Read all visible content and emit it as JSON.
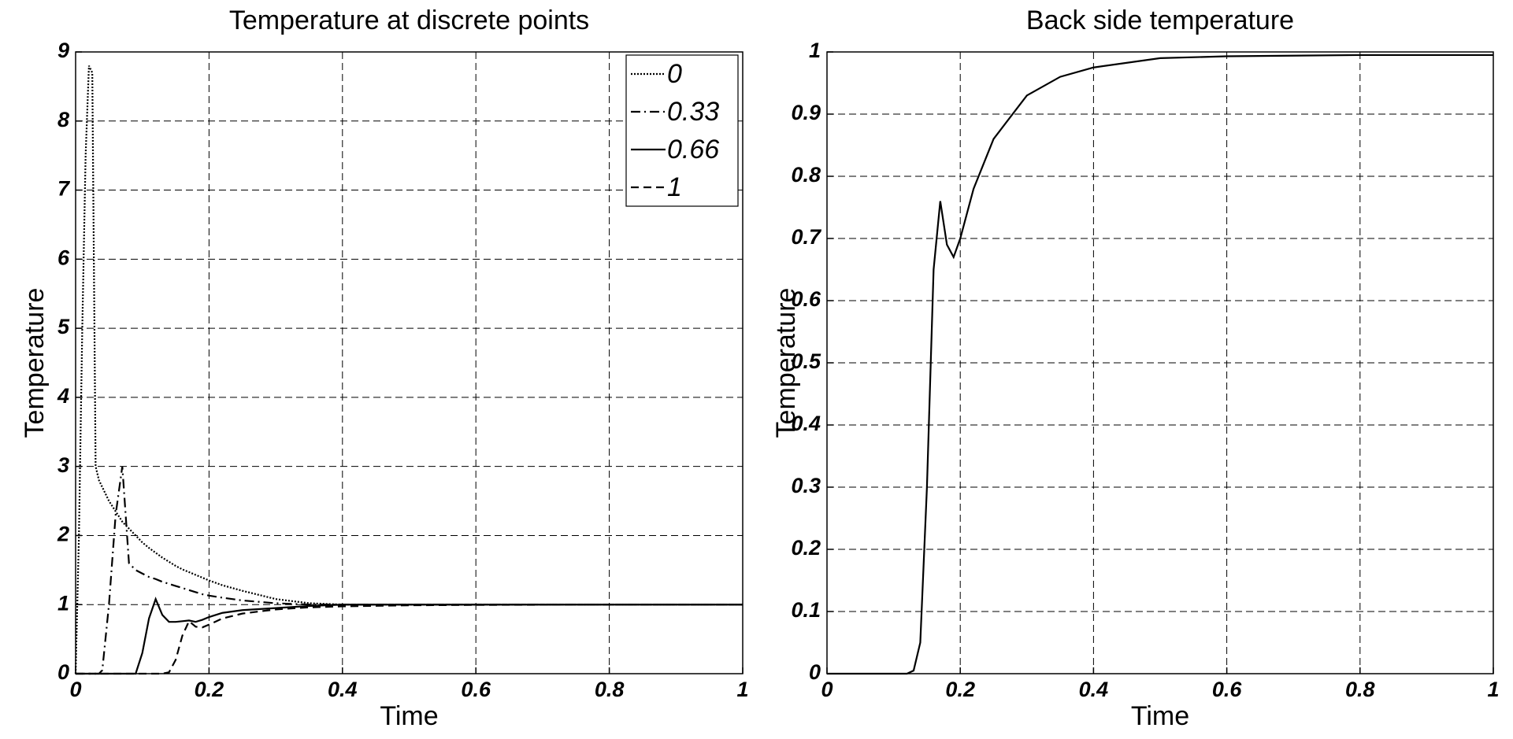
{
  "chart_data": [
    {
      "type": "line",
      "title": "Temperature at discrete points",
      "x_label": "Time",
      "y_label": "Temperature",
      "x": [
        0,
        0.005,
        0.01,
        0.015,
        0.02,
        0.025,
        0.03,
        0.035,
        0.04,
        0.05,
        0.06,
        0.07,
        0.08,
        0.09,
        0.1,
        0.11,
        0.12,
        0.13,
        0.14,
        0.15,
        0.16,
        0.17,
        0.18,
        0.19,
        0.2,
        0.22,
        0.25,
        0.3,
        0.35,
        0.4,
        0.5,
        0.6,
        0.8,
        1
      ],
      "series": [
        {
          "name": "0",
          "color": "#000000",
          "line_style": "dotted",
          "values": [
            0,
            2,
            5,
            7.5,
            8.8,
            8.7,
            3.0,
            2.8,
            2.7,
            2.5,
            2.35,
            2.2,
            2.1,
            2.0,
            1.9,
            1.82,
            1.75,
            1.68,
            1.62,
            1.56,
            1.51,
            1.47,
            1.43,
            1.39,
            1.35,
            1.28,
            1.2,
            1.08,
            1.02,
            1.0,
            1,
            1,
            1,
            1
          ]
        },
        {
          "name": "0.33",
          "color": "#000000",
          "line_style": "dashdot",
          "values": [
            0,
            0,
            0,
            0,
            0,
            0,
            0,
            0,
            0.05,
            1.0,
            2.3,
            3.0,
            1.6,
            1.5,
            1.45,
            1.4,
            1.37,
            1.33,
            1.3,
            1.27,
            1.24,
            1.21,
            1.18,
            1.15,
            1.13,
            1.1,
            1.06,
            1.02,
            1.0,
            1.0,
            1,
            1,
            1,
            1
          ]
        },
        {
          "name": "0.66",
          "color": "#000000",
          "line_style": "solid",
          "values": [
            0,
            0,
            0,
            0,
            0,
            0,
            0,
            0,
            0,
            0,
            0,
            0,
            0,
            0,
            0.3,
            0.8,
            1.08,
            0.85,
            0.75,
            0.75,
            0.76,
            0.77,
            0.75,
            0.78,
            0.82,
            0.88,
            0.92,
            0.95,
            0.98,
            1.0,
            1,
            1,
            1,
            1
          ]
        },
        {
          "name": "1",
          "color": "#000000",
          "line_style": "dashed",
          "values": [
            0,
            0,
            0,
            0,
            0,
            0,
            0,
            0,
            0,
            0,
            0,
            0,
            0,
            0,
            0,
            0,
            0,
            0,
            0.02,
            0.2,
            0.55,
            0.76,
            0.68,
            0.67,
            0.71,
            0.8,
            0.87,
            0.93,
            0.96,
            0.975,
            0.99,
            0.995,
            1,
            1
          ]
        }
      ],
      "xlim": [
        0,
        1
      ],
      "xticks": [
        0,
        0.2,
        0.4,
        0.6,
        0.8,
        1
      ],
      "ylim": [
        0,
        9
      ],
      "yticks": [
        0,
        1,
        2,
        3,
        4,
        5,
        6,
        7,
        8,
        9
      ],
      "grid": true,
      "legend": "upper right"
    },
    {
      "type": "line",
      "title": "Back side temperature",
      "x_label": "Time",
      "y_label": "Temperature",
      "x": [
        0,
        0.12,
        0.13,
        0.14,
        0.15,
        0.16,
        0.17,
        0.18,
        0.19,
        0.2,
        0.22,
        0.25,
        0.3,
        0.35,
        0.4,
        0.5,
        0.6,
        0.8,
        1
      ],
      "series": [
        {
          "color": "#000000",
          "line_style": "solid",
          "values": [
            0,
            0,
            0.005,
            0.05,
            0.3,
            0.65,
            0.76,
            0.69,
            0.67,
            0.7,
            0.78,
            0.86,
            0.93,
            0.96,
            0.975,
            0.99,
            0.993,
            0.995,
            0.995
          ]
        }
      ],
      "xlim": [
        0,
        1
      ],
      "xticks": [
        0,
        0.2,
        0.4,
        0.6,
        0.8,
        1
      ],
      "ylim": [
        0,
        1
      ],
      "yticks": [
        0,
        0.1,
        0.2,
        0.3,
        0.4,
        0.5,
        0.6,
        0.7,
        0.8,
        0.9,
        1
      ],
      "grid": true
    }
  ]
}
